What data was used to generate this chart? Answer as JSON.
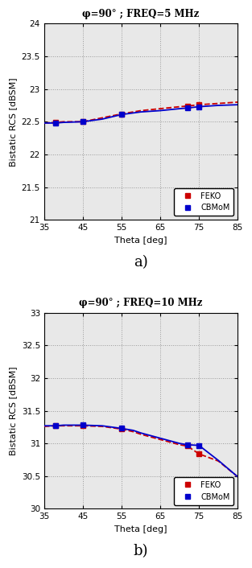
{
  "plot_a": {
    "title": "φ=90° ; FREQ=5 MHz",
    "xlabel": "Theta [deg]",
    "ylabel": "Bistatic RCS [dBSM]",
    "xlim": [
      35,
      85
    ],
    "ylim": [
      21,
      24
    ],
    "yticks": [
      21,
      21.5,
      22,
      22.5,
      23,
      23.5,
      24
    ],
    "xticks": [
      35,
      45,
      55,
      65,
      75,
      85
    ],
    "cbmom_x": [
      35,
      38,
      40,
      45,
      50,
      55,
      60,
      65,
      70,
      72,
      75,
      80,
      85
    ],
    "cbmom_y": [
      22.48,
      22.48,
      22.49,
      22.5,
      22.54,
      22.61,
      22.65,
      22.67,
      22.7,
      22.71,
      22.73,
      22.75,
      22.76
    ],
    "feko_x": [
      35,
      38,
      40,
      45,
      50,
      55,
      60,
      65,
      70,
      72,
      75,
      80,
      85
    ],
    "feko_y": [
      22.48,
      22.49,
      22.5,
      22.5,
      22.56,
      22.62,
      22.67,
      22.7,
      22.73,
      22.74,
      22.76,
      22.78,
      22.8
    ],
    "cbmom_marker_x": [
      38,
      45,
      55,
      72,
      75
    ],
    "cbmom_marker_y": [
      22.48,
      22.5,
      22.61,
      22.71,
      22.73
    ],
    "feko_marker_x": [
      38,
      45,
      55,
      72,
      75
    ],
    "feko_marker_y": [
      22.49,
      22.5,
      22.62,
      22.74,
      22.76
    ],
    "label": "a)"
  },
  "plot_b": {
    "title": "φ=90° ; FREQ=10 MHz",
    "xlabel": "Theta [deg]",
    "ylabel": "Bistatic RCS [dBSM]",
    "xlim": [
      35,
      85
    ],
    "ylim": [
      30,
      33
    ],
    "yticks": [
      30,
      30.5,
      31,
      31.5,
      32,
      32.5,
      33
    ],
    "xticks": [
      35,
      45,
      55,
      65,
      75,
      85
    ],
    "cbmom_x": [
      35,
      38,
      40,
      45,
      50,
      55,
      58,
      60,
      65,
      70,
      72,
      75,
      80,
      85
    ],
    "cbmom_y": [
      31.27,
      31.27,
      31.28,
      31.28,
      31.27,
      31.23,
      31.2,
      31.16,
      31.08,
      31.0,
      30.98,
      30.97,
      30.74,
      30.49
    ],
    "feko_x": [
      35,
      38,
      40,
      45,
      50,
      55,
      58,
      60,
      65,
      70,
      72,
      75,
      80,
      85
    ],
    "feko_y": [
      31.26,
      31.27,
      31.27,
      31.27,
      31.26,
      31.22,
      31.18,
      31.14,
      31.06,
      30.98,
      30.96,
      30.84,
      30.73,
      30.49
    ],
    "cbmom_marker_x": [
      38,
      45,
      55,
      72,
      75
    ],
    "cbmom_marker_y": [
      31.27,
      31.28,
      31.23,
      30.98,
      30.97
    ],
    "feko_marker_x": [
      38,
      45,
      55,
      72,
      75
    ],
    "feko_marker_y": [
      31.27,
      31.27,
      31.22,
      30.96,
      30.84
    ],
    "label": "b)"
  },
  "cbmom_color": "#0000cc",
  "feko_color": "#cc0000",
  "cbmom_label": "CBMoM",
  "feko_label": "FEKO",
  "grid_color": "#999999",
  "bg_color": "#ffffff",
  "plot_bg_color": "#e8e8e8",
  "legend_fontsize": 7,
  "tick_fontsize": 7.5,
  "label_fontsize": 8,
  "title_fontsize": 8.5
}
